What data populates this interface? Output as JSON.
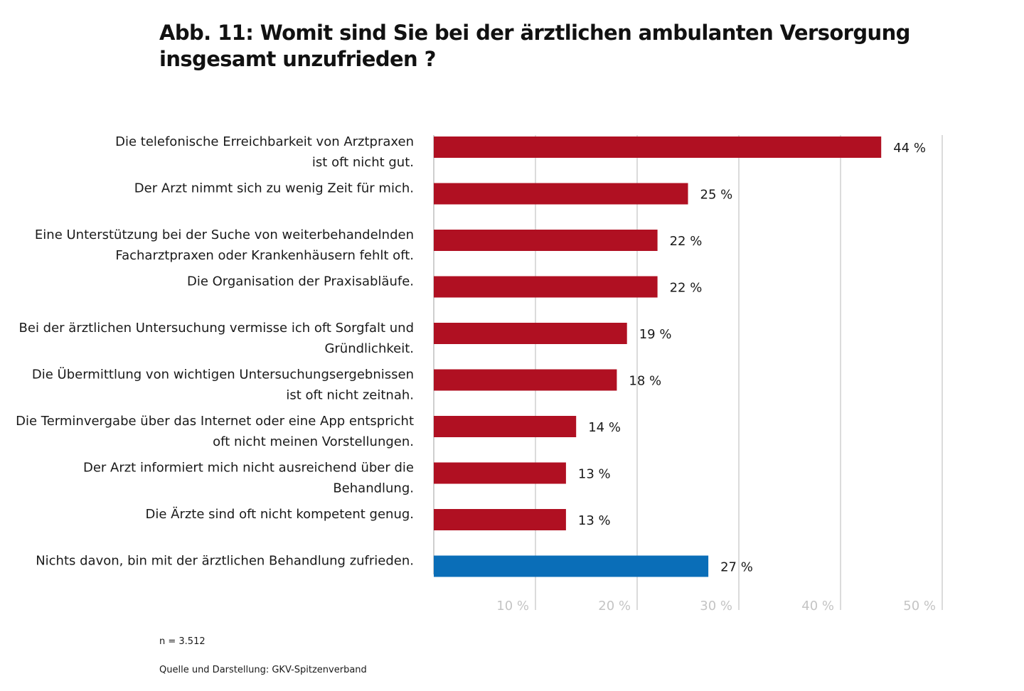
{
  "chart_data": {
    "type": "bar",
    "orientation": "horizontal",
    "title": "Abb. 11: Womit sind Sie bei der ärztlichen ambulanten Versorgung insgesamt unzufrieden ?",
    "categories": [
      [
        "Die telefonische Erreichbarkeit von Arztpraxen",
        "ist oft nicht gut."
      ],
      [
        "Der Arzt nimmt sich zu wenig Zeit für mich."
      ],
      [
        "Eine Unterstützung bei der Suche von weiterbehandelnden",
        "Facharztpraxen oder Krankenhäusern fehlt oft."
      ],
      [
        "Die Organisation der Praxisabläufe."
      ],
      [
        "Bei der ärztlichen Untersuchung vermisse ich oft Sorgfalt und",
        "Gründlichkeit."
      ],
      [
        "Die Übermittlung von wichtigen Untersuchungsergebnissen",
        "ist oft nicht zeitnah."
      ],
      [
        "Die Terminvergabe über das Internet oder eine App entspricht",
        "oft nicht meinen Vorstellungen."
      ],
      [
        "Der Arzt informiert mich nicht ausreichend über die",
        "Behandlung."
      ],
      [
        "Die Ärzte sind oft nicht kompetent genug."
      ],
      [
        "Nichts davon, bin mit der ärztlichen Behandlung zufrieden."
      ]
    ],
    "values": [
      44,
      25,
      22,
      22,
      19,
      18,
      14,
      13,
      13,
      27
    ],
    "value_labels": [
      "44 %",
      "25 %",
      "22 %",
      "22 %",
      "19 %",
      "18 %",
      "14 %",
      "13 %",
      "13 %",
      "27 %"
    ],
    "bar_colors": [
      "#b01022",
      "#b01022",
      "#b01022",
      "#b01022",
      "#b01022",
      "#b01022",
      "#b01022",
      "#b01022",
      "#b01022",
      "#0a6eb8"
    ],
    "xlim": [
      0,
      50
    ],
    "x_ticks": [
      10,
      20,
      30,
      40,
      50
    ],
    "x_tick_labels": [
      "10 %",
      "20 %",
      "30 %",
      "40 %",
      "50 %"
    ],
    "grid": true,
    "gridline_color": "#cfcfcf",
    "legend": "none"
  },
  "notes": {
    "sample": "n = 3.512",
    "source": "Quelle und Darstellung: GKV-Spitzenverband"
  }
}
